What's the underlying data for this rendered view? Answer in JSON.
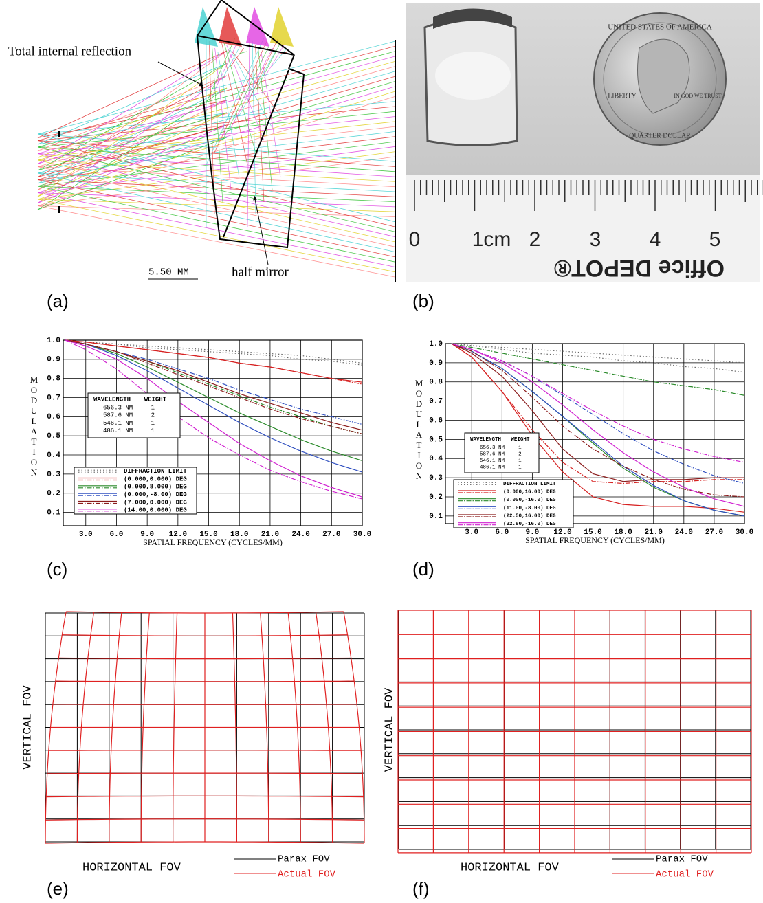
{
  "panel_labels": [
    "(a)",
    "(b)",
    "(c)",
    "(d)",
    "(e)",
    "(f)"
  ],
  "panel_a": {
    "annotations": [
      "Total internal reflection",
      "half mirror"
    ],
    "scale_bar": "5.50 MM"
  },
  "panel_b": {
    "ruler_labels": [
      "0",
      "1cm",
      "2",
      "3",
      "4",
      "5"
    ],
    "ruler_brand": "Office DEPOT®",
    "coin_texts": [
      "UNITED STATES OF AMERICA",
      "LIBERTY",
      "IN GOD WE TRUST",
      "QUARTER DOLLAR"
    ]
  },
  "chart_data": [
    {
      "type": "line",
      "y_label": "MODULATION",
      "x_label": "SPATIAL FREQUENCY (CYCLES/MM)",
      "xlim": [
        0.8,
        30
      ],
      "ylim": [
        0.03,
        1
      ],
      "xticks": [
        {
          "value": 3,
          "label": "3.0"
        },
        {
          "value": 6,
          "label": "6.0"
        },
        {
          "value": 9,
          "label": "9.0"
        },
        {
          "value": 12,
          "label": "12.0"
        },
        {
          "value": 15,
          "label": "15.0"
        },
        {
          "value": 18,
          "label": "18.0"
        },
        {
          "value": 21,
          "label": "21.0"
        },
        {
          "value": 24,
          "label": "24.0"
        },
        {
          "value": 27,
          "label": "27.0"
        },
        {
          "value": 30,
          "label": "30.0"
        }
      ],
      "yticks": [
        {
          "value": 1,
          "label": "1.0"
        },
        0.9,
        0.8,
        0.7,
        0.6,
        0.5,
        0.4,
        0.3,
        0.2,
        0.1
      ],
      "grid": true,
      "wavelength_table": {
        "header": [
          "WAVELENGTH",
          "WEIGHT"
        ],
        "rows": [
          [
            "656.3 NM",
            "1"
          ],
          [
            "587.6 NM",
            "2"
          ],
          [
            "546.1 NM",
            "1"
          ],
          [
            "486.1 NM",
            "1"
          ]
        ]
      },
      "x": [
        1,
        3,
        6,
        9,
        12,
        15,
        18,
        21,
        24,
        27,
        30
      ],
      "series": [
        {
          "name": "DIFFRACTION LIMIT",
          "color": "#666666",
          "values": [
            1,
            0.99,
            0.98,
            0.97,
            0.96,
            0.95,
            0.94,
            0.93,
            0.92,
            0.9,
            0.88
          ],
          "sagittal_values": [
            1,
            0.99,
            0.98,
            0.96,
            0.95,
            0.94,
            0.93,
            0.92,
            0.9,
            0.89,
            0.87
          ]
        },
        {
          "name": "(0.000,0.000) DEG",
          "color": "#d62020",
          "values": [
            1,
            0.99,
            0.97,
            0.95,
            0.93,
            0.91,
            0.88,
            0.86,
            0.83,
            0.8,
            0.78
          ],
          "sagittal_values": [
            1,
            0.99,
            0.97,
            0.95,
            0.93,
            0.91,
            0.88,
            0.86,
            0.83,
            0.8,
            0.77
          ]
        },
        {
          "name": "(0.000,8.000) DEG",
          "color": "#2a8a2a",
          "values": [
            1,
            0.98,
            0.93,
            0.86,
            0.78,
            0.7,
            0.62,
            0.55,
            0.48,
            0.42,
            0.37
          ],
          "sagittal_values": [
            1,
            0.98,
            0.94,
            0.89,
            0.83,
            0.77,
            0.71,
            0.65,
            0.6,
            0.55,
            0.51
          ]
        },
        {
          "name": "(0.000,-8.00) DEG",
          "color": "#3050c0",
          "values": [
            1,
            0.98,
            0.92,
            0.84,
            0.75,
            0.66,
            0.57,
            0.49,
            0.42,
            0.36,
            0.31
          ],
          "sagittal_values": [
            1,
            0.98,
            0.94,
            0.9,
            0.85,
            0.8,
            0.74,
            0.69,
            0.64,
            0.6,
            0.56
          ]
        },
        {
          "name": "(7.000,0.000) DEG",
          "color": "#8b1c1c",
          "values": [
            1,
            0.98,
            0.94,
            0.89,
            0.84,
            0.78,
            0.72,
            0.67,
            0.62,
            0.57,
            0.53
          ],
          "sagittal_values": [
            1,
            0.98,
            0.94,
            0.88,
            0.82,
            0.76,
            0.7,
            0.64,
            0.59,
            0.55,
            0.51
          ]
        },
        {
          "name": "(14.00,0.000) DEG",
          "color": "#d020d0",
          "values": [
            1,
            0.97,
            0.9,
            0.8,
            0.68,
            0.57,
            0.46,
            0.37,
            0.29,
            0.23,
            0.18
          ],
          "sagittal_values": [
            1,
            0.95,
            0.85,
            0.72,
            0.6,
            0.49,
            0.4,
            0.32,
            0.26,
            0.21,
            0.17
          ]
        }
      ]
    },
    {
      "type": "line",
      "y_label": "MODULATION",
      "x_label": "SPATIAL FREQUENCY (CYCLES/MM)",
      "xlim": [
        0.4,
        30
      ],
      "ylim": [
        0.06,
        1
      ],
      "xticks": [
        {
          "value": 3,
          "label": "3.0"
        },
        {
          "value": 6,
          "label": "6.0"
        },
        {
          "value": 9,
          "label": "9.0"
        },
        {
          "value": 12,
          "label": "12.0"
        },
        {
          "value": 15,
          "label": "15.0"
        },
        {
          "value": 18,
          "label": "18.0"
        },
        {
          "value": 21,
          "label": "21.0"
        },
        {
          "value": 24,
          "label": "24.0"
        },
        {
          "value": 27,
          "label": "27.0"
        },
        {
          "value": 30,
          "label": "30.0"
        }
      ],
      "yticks": [
        {
          "value": 1,
          "label": "1.0"
        },
        0.9,
        0.8,
        0.7,
        0.6,
        0.5,
        0.4,
        0.3,
        0.2,
        0.1
      ],
      "grid": true,
      "wavelength_table": {
        "header": [
          "WAVELENGTH",
          "WEIGHT"
        ],
        "rows": [
          [
            "656.3 NM",
            "1"
          ],
          [
            "587.6 NM",
            "2"
          ],
          [
            "546.1 NM",
            "1"
          ],
          [
            "486.1 NM",
            "1"
          ]
        ]
      },
      "x": [
        1,
        3,
        6,
        9,
        12,
        15,
        18,
        21,
        24,
        27,
        30
      ],
      "series": [
        {
          "name": "DIFFRACTION LIMIT",
          "color": "#666666",
          "values": [
            1,
            0.99,
            0.98,
            0.97,
            0.96,
            0.95,
            0.94,
            0.93,
            0.92,
            0.91,
            0.9
          ],
          "sagittal_values": [
            1,
            0.99,
            0.97,
            0.95,
            0.94,
            0.93,
            0.91,
            0.9,
            0.88,
            0.87,
            0.85
          ]
        },
        {
          "name": "(0.000,16.00) DEG",
          "color": "#d62020",
          "values": [
            1,
            0.93,
            0.75,
            0.52,
            0.33,
            0.2,
            0.16,
            0.15,
            0.15,
            0.14,
            0.12
          ],
          "sagittal_values": [
            1,
            0.93,
            0.75,
            0.55,
            0.38,
            0.28,
            0.27,
            0.28,
            0.28,
            0.29,
            0.29
          ]
        },
        {
          "name": "(0.000,-16.0) DEG",
          "color": "#2a8a2a",
          "values": [
            1,
            0.96,
            0.87,
            0.75,
            0.62,
            0.48,
            0.35,
            0.25,
            0.18,
            0.13,
            0.1
          ],
          "sagittal_values": [
            1,
            0.98,
            0.95,
            0.92,
            0.89,
            0.86,
            0.83,
            0.8,
            0.78,
            0.76,
            0.73
          ]
        },
        {
          "name": "(11.00,-8.00) DEG",
          "color": "#3050c0",
          "values": [
            1,
            0.96,
            0.87,
            0.75,
            0.62,
            0.49,
            0.36,
            0.26,
            0.18,
            0.13,
            0.1
          ],
          "sagittal_values": [
            1,
            0.97,
            0.91,
            0.83,
            0.73,
            0.63,
            0.53,
            0.44,
            0.37,
            0.31,
            0.27
          ]
        },
        {
          "name": "(22.50,16.00) DEG",
          "color": "#8b1c1c",
          "values": [
            1,
            0.95,
            0.83,
            0.65,
            0.45,
            0.32,
            0.28,
            0.29,
            0.29,
            0.3,
            0.3
          ],
          "sagittal_values": [
            1,
            0.96,
            0.86,
            0.72,
            0.57,
            0.45,
            0.36,
            0.29,
            0.24,
            0.21,
            0.2
          ]
        },
        {
          "name": "(22.50,-16.0) DEG",
          "color": "#d020d0",
          "values": [
            1,
            0.97,
            0.9,
            0.8,
            0.68,
            0.55,
            0.43,
            0.33,
            0.25,
            0.19,
            0.15
          ],
          "sagittal_values": [
            1,
            0.97,
            0.91,
            0.83,
            0.74,
            0.65,
            0.57,
            0.5,
            0.45,
            0.41,
            0.38
          ]
        }
      ]
    }
  ],
  "panel_e": {
    "y_label": "VERTICAL FOV",
    "x_label": "HORIZONTAL FOV",
    "legend": [
      "Parax FOV",
      "Actual FOV"
    ]
  },
  "panel_f": {
    "y_label": "VERTICAL FOV",
    "x_label": "HORIZONTAL FOV",
    "legend": [
      "Parax FOV",
      "Actual FOV"
    ]
  }
}
